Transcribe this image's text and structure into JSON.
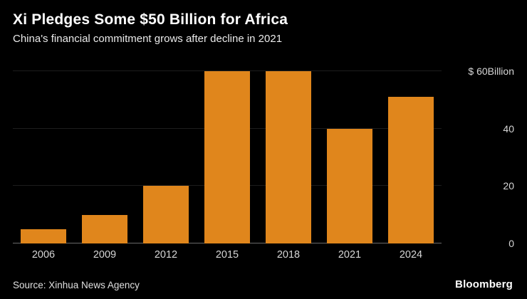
{
  "header": {
    "title": "Xi Pledges Some $50 Billion for Africa",
    "subtitle": "China's financial commitment grows after decline in 2021"
  },
  "chart_data": {
    "type": "bar",
    "categories": [
      "2006",
      "2009",
      "2012",
      "2015",
      "2018",
      "2021",
      "2024"
    ],
    "values": [
      5,
      10,
      20,
      60,
      60,
      40,
      51
    ],
    "title": "Xi Pledges Some $50 Billion for Africa",
    "subtitle": "China's financial commitment grows after decline in 2021",
    "xlabel": "",
    "ylabel": "$ Billion",
    "ylim": [
      0,
      62
    ],
    "yticks": [
      {
        "value": 0,
        "label": "0"
      },
      {
        "value": 20,
        "label": "20"
      },
      {
        "value": 40,
        "label": "40"
      },
      {
        "value": 60,
        "label": "$ 60Billion"
      }
    ],
    "bar_color": "#E0861C",
    "background": "#000000",
    "grid": "minimal-horizontal",
    "legend": "none",
    "tick_label_position": "right"
  },
  "footer": {
    "source": "Source: Xinhua News Agency",
    "brand": "Bloomberg"
  }
}
